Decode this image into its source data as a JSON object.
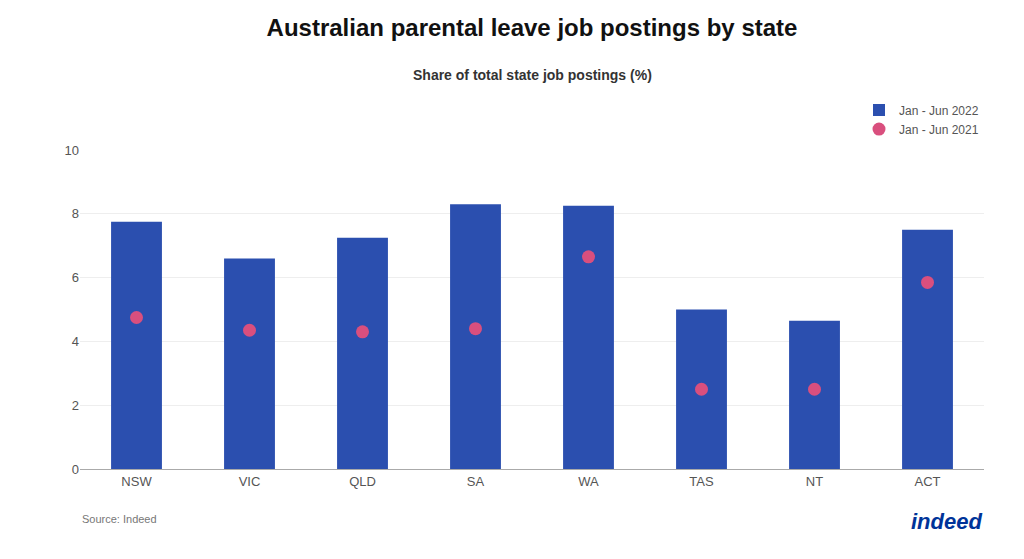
{
  "chart_data": {
    "type": "bar",
    "title": "Australian parental leave job postings by state",
    "subtitle": "Share of total state job postings (%)",
    "categories": [
      "NSW",
      "VIC",
      "QLD",
      "SA",
      "WA",
      "TAS",
      "NT",
      "ACT"
    ],
    "series": [
      {
        "name": "Jan - Jun 2022",
        "type": "bar",
        "color": "#2B4FAF",
        "values": [
          7.75,
          6.6,
          7.25,
          8.3,
          8.25,
          5.0,
          4.65,
          7.5
        ]
      },
      {
        "name": "Jan - Jun 2021",
        "type": "scatter",
        "marker": "circle",
        "color": "#D94F7E",
        "values": [
          4.75,
          4.35,
          4.3,
          4.4,
          6.65,
          2.5,
          2.5,
          5.85
        ]
      }
    ],
    "ylim": [
      0,
      10
    ],
    "yticks": [
      0,
      2,
      4,
      6,
      8,
      10
    ],
    "grid": true,
    "legend": "upper right",
    "annotations": [
      "Source: Indeed",
      "indeed"
    ]
  }
}
